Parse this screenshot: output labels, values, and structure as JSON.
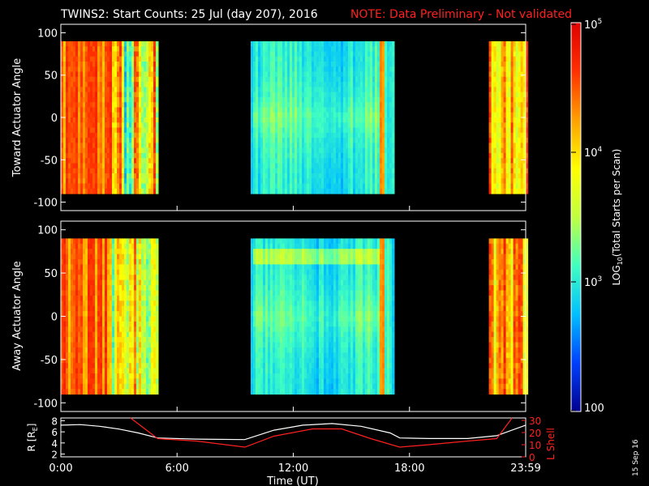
{
  "title": {
    "main": "TWINS2: Start Counts: 25 Jul (day 207), 2016",
    "note": "NOTE: Data Preliminary - Not validated",
    "note_color": "#ff2020"
  },
  "stamp": "15 Sep 16",
  "chart_data": [
    {
      "type": "heatmap",
      "name": "toward-panel",
      "ylabel": "Toward Actuator Angle",
      "ylim": [
        -110,
        110
      ],
      "yticks": [
        "100",
        "50",
        "0",
        "-50",
        "-100"
      ],
      "data_range_deg": [
        -90,
        90
      ],
      "coverage_hours": [
        [
          0.0,
          5.0
        ],
        [
          9.8,
          17.2
        ],
        [
          22.1,
          24.0
        ]
      ],
      "segments": [
        {
          "start_hr": 0.0,
          "end_hr": 2.6,
          "level": "high (red/orange, ~10^4.5)"
        },
        {
          "start_hr": 2.6,
          "end_hr": 5.0,
          "level": "mixed (yellow/cyan)"
        },
        {
          "start_hr": 9.8,
          "end_hr": 17.2,
          "level": "low (blue/cyan, ~10^3)"
        },
        {
          "start_hr": 22.1,
          "end_hr": 24.0,
          "level": "high (orange/yellow)"
        }
      ]
    },
    {
      "type": "heatmap",
      "name": "away-panel",
      "ylabel": "Away Actuator Angle",
      "ylim": [
        -110,
        110
      ],
      "yticks": [
        "100",
        "50",
        "0",
        "-50",
        "-100"
      ],
      "data_range_deg": [
        -90,
        90
      ],
      "coverage_hours": [
        [
          0.0,
          5.0
        ],
        [
          9.8,
          17.2
        ],
        [
          22.1,
          24.0
        ]
      ],
      "segments": [
        {
          "start_hr": 0.0,
          "end_hr": 2.6,
          "level": "high (red/orange)"
        },
        {
          "start_hr": 2.6,
          "end_hr": 5.0,
          "level": "mixed (yellow/cyan)"
        },
        {
          "start_hr": 9.8,
          "end_hr": 17.2,
          "level": "low (blue/cyan), cyan band near 70 deg"
        },
        {
          "start_hr": 22.1,
          "end_hr": 24.0,
          "level": "high (orange/yellow)"
        }
      ]
    },
    {
      "type": "line",
      "name": "orbit-panel",
      "ylabel_left": "R [R",
      "ylabel_left_sub": "E",
      "ylabel_left_end": "]",
      "ylabel_right": "L Shell",
      "ylim_left": [
        1.5,
        8.5
      ],
      "yticks_left": [
        "8",
        "6",
        "4",
        "2"
      ],
      "ylim_right": [
        0,
        32
      ],
      "yticks_right": [
        "30",
        "20",
        "10",
        "0"
      ],
      "xlabel": "Time (UT)",
      "xticks": [
        "0:00",
        "6:00",
        "12:00",
        "18:00",
        "23:59"
      ],
      "xtick_hours": [
        0,
        6,
        12,
        18,
        24
      ],
      "series": [
        {
          "name": "R",
          "color": "#ffffff",
          "x": [
            0,
            1,
            2,
            3,
            4,
            5,
            7,
            9.5,
            11,
            12.5,
            14,
            15.5,
            17,
            17.5,
            19,
            21,
            22.5,
            24
          ],
          "y": [
            7.2,
            7.3,
            7.0,
            6.5,
            5.8,
            4.9,
            4.7,
            4.6,
            6.3,
            7.2,
            7.5,
            7.0,
            5.8,
            4.9,
            4.8,
            4.8,
            5.3,
            7.2
          ]
        },
        {
          "name": "L Shell",
          "color": "#ff2020",
          "x": [
            3.6,
            5,
            7,
            9.5,
            11,
            13,
            14.5,
            16,
            17.5,
            19,
            21,
            22.5,
            23.3
          ],
          "y": [
            32,
            15,
            13,
            8,
            17,
            23,
            23,
            15,
            8,
            10,
            13,
            15,
            32
          ]
        }
      ]
    }
  ],
  "colorbar": {
    "label": "LOG",
    "label_sub": "10",
    "label_rest": "(Total Starts per Scan)",
    "ticks": [
      {
        "label": "10",
        "exp": "5",
        "value": 5
      },
      {
        "label": "10",
        "exp": "4",
        "value": 4
      },
      {
        "label": "10",
        "exp": "3",
        "value": 3
      },
      {
        "label": "100",
        "exp": "",
        "value": 2
      }
    ],
    "range": [
      2,
      5
    ],
    "colors": [
      "#000090",
      "#0040ff",
      "#00c0ff",
      "#40ffc0",
      "#c0ff40",
      "#ffff00",
      "#ffa000",
      "#ff3000",
      "#e00000"
    ]
  }
}
